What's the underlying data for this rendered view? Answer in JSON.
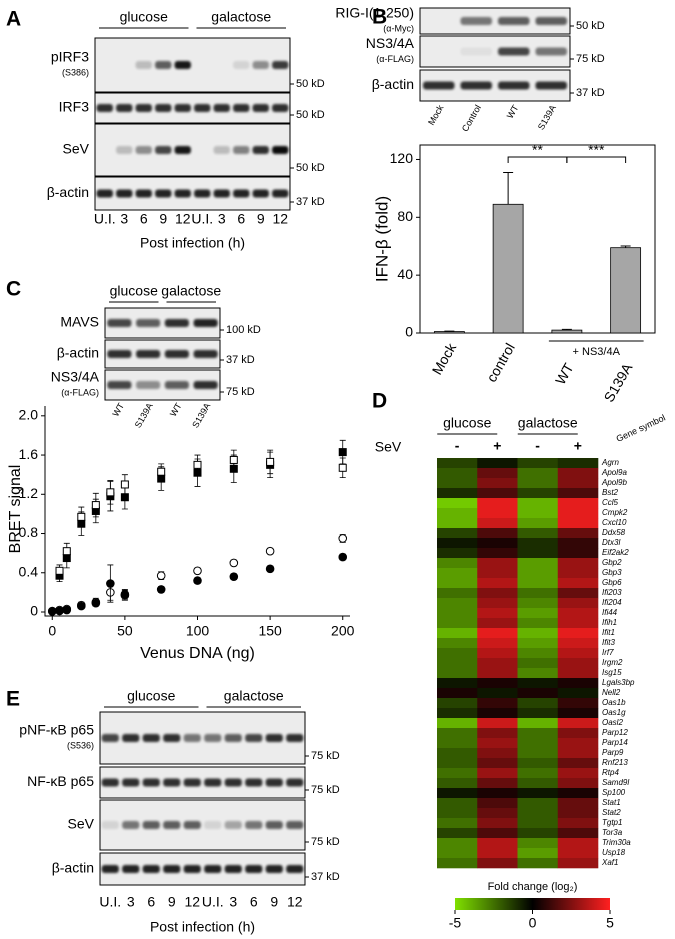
{
  "figure": {
    "A": {
      "letter": "A",
      "groups": [
        "glucose",
        "galactose"
      ],
      "rows": [
        {
          "label": "pIRF3",
          "sub": "(S386)",
          "size": "50 kD"
        },
        {
          "label": "IRF3",
          "size": "50 kD"
        },
        {
          "label": "SeV",
          "size": "50 kD"
        },
        {
          "label": "β-actin",
          "size": "37 kD"
        }
      ],
      "lanes": [
        "U.I.",
        "3",
        "6",
        "9",
        "12",
        "U.I.",
        "3",
        "6",
        "9",
        "12"
      ],
      "xlabel": "Post infection (h)"
    },
    "B": {
      "letter": "B",
      "rows": [
        {
          "label": "RIG-I(1-250)",
          "sub": "(α-Myc)",
          "size": "50 kD"
        },
        {
          "label": "NS3/4A",
          "sub": "(α-FLAG)",
          "size": "75 kD"
        },
        {
          "label": "β-actin",
          "size": "37 kD"
        }
      ],
      "lanes": [
        "Mock",
        "Control",
        "WT",
        "S139A"
      ]
    },
    "C": {
      "letter": "C",
      "groups": [
        "glucose",
        "galactose"
      ],
      "rows": [
        {
          "label": "MAVS",
          "size": "100 kD"
        },
        {
          "label": "β-actin",
          "size": "37 kD"
        },
        {
          "label": "NS3/4A",
          "sub": "(α-FLAG)",
          "size": "75 kD"
        }
      ],
      "lanes": [
        "WT",
        "S139A",
        "WT",
        "S139A"
      ]
    },
    "D": {
      "letter": "D"
    },
    "E": {
      "letter": "E",
      "groups": [
        "glucose",
        "galactose"
      ],
      "rows": [
        {
          "label": "pNF-κB p65",
          "sub": "(S536)",
          "size": "75 kD"
        },
        {
          "label": "NF-κB p65",
          "size": "75 kD"
        },
        {
          "label": "SeV",
          "size": "75 kD"
        },
        {
          "label": "β-actin",
          "size": "37 kD"
        }
      ],
      "lanes": [
        "U.I.",
        "3",
        "6",
        "9",
        "12",
        "U.I.",
        "3",
        "6",
        "9",
        "12"
      ],
      "xlabel": "Post infection (h)"
    }
  },
  "chart_data": [
    {
      "type": "bar",
      "ylabel": "IFN-β (fold)",
      "categories": [
        "Mock",
        "control",
        "WT",
        "S139A"
      ],
      "values": [
        1,
        89,
        2,
        59
      ],
      "errors": [
        0.3,
        22,
        0.5,
        1.2
      ],
      "ylim": [
        0,
        130
      ],
      "yticks": [
        0,
        40,
        80,
        120
      ],
      "color": "#a6a6a6",
      "annotations": [
        "**",
        "***"
      ],
      "group_label": "+ NS3/4A"
    },
    {
      "type": "scatter",
      "xlabel": "Venus DNA (ng)",
      "ylabel": "BRET signal",
      "xlim": [
        -5,
        205
      ],
      "ylim": [
        0,
        2.1
      ],
      "xticks": [
        0,
        50,
        100,
        150,
        200
      ],
      "yticks": [
        0,
        0.4,
        0.8,
        1.2,
        1.6,
        {
          "value": 2.0,
          "label": "2.0"
        }
      ],
      "series": [
        {
          "marker": "square",
          "filled": true,
          "color": "#000000",
          "x": [
            5,
            10,
            20,
            30,
            40,
            50,
            75,
            100,
            125,
            150,
            200
          ],
          "values": [
            0.37,
            0.55,
            0.9,
            1.03,
            1.18,
            1.17,
            1.36,
            1.42,
            1.46,
            1.5,
            1.63
          ],
          "errors": [
            0.06,
            0.1,
            0.12,
            0.12,
            0.15,
            0.12,
            0.12,
            0.14,
            0.14,
            0.13,
            0.12
          ]
        },
        {
          "marker": "square",
          "filled": false,
          "color": "#000000",
          "x": [
            5,
            10,
            20,
            30,
            40,
            50,
            75,
            100,
            125,
            150,
            200
          ],
          "values": [
            0.42,
            0.62,
            0.97,
            1.09,
            1.22,
            1.3,
            1.43,
            1.5,
            1.55,
            1.53,
            1.47
          ],
          "errors": [
            0.06,
            0.08,
            0.1,
            0.12,
            0.12,
            0.1,
            0.08,
            0.1,
            0.1,
            0.12,
            0.1
          ]
        },
        {
          "marker": "circle",
          "filled": false,
          "color": "#000000",
          "x": [
            0,
            5,
            10,
            20,
            30,
            40,
            50,
            75,
            100,
            125,
            150,
            200
          ],
          "values": [
            0.01,
            0.02,
            0.03,
            0.07,
            0.1,
            0.2,
            0.17,
            0.37,
            0.42,
            0.5,
            0.62,
            0.75
          ],
          "errors": [
            0.01,
            0.02,
            0.02,
            0.03,
            0.04,
            0.08,
            0.05,
            0.04,
            0.03,
            0.03,
            0.03,
            0.04
          ]
        },
        {
          "marker": "circle",
          "filled": true,
          "color": "#000000",
          "x": [
            0,
            5,
            10,
            20,
            30,
            40,
            50,
            75,
            100,
            125,
            150,
            200
          ],
          "values": [
            0.005,
            0.01,
            0.02,
            0.06,
            0.09,
            0.29,
            0.18,
            0.23,
            0.32,
            0.36,
            0.44,
            0.56
          ],
          "errors": [
            0.01,
            0.01,
            0.02,
            0.02,
            0.03,
            0.19,
            0.05,
            0.03,
            0.03,
            0.03,
            0.03,
            0.03
          ]
        }
      ]
    },
    {
      "type": "heatmap",
      "row_title": "Gene symbol",
      "column_title": "SeV",
      "groups": [
        "glucose",
        "galactose"
      ],
      "columns": [
        "-",
        "+",
        "-",
        "+"
      ],
      "rows": [
        "Agrn",
        "Apol9a",
        "Apol9b",
        "Bst2",
        "Ccl5",
        "Cmpk2",
        "Cxcl10",
        "Ddx58",
        "Dtx3l",
        "Eif2ak2",
        "Gbp2",
        "Gbp3",
        "Gbp6",
        "Ifi203",
        "Ifi204",
        "Ifi44",
        "Ifih1",
        "Ifit1",
        "Ifit3",
        "Irf7",
        "Irgm2",
        "Isg15",
        "Lgals3bp",
        "Nell2",
        "Oas1b",
        "Oas1g",
        "Oasl2",
        "Parp12",
        "Parp14",
        "Parp9",
        "Rnf213",
        "Rtp4",
        "Samd9l",
        "Sp100",
        "Stat1",
        "Stat2",
        "Tgtp1",
        "Tor3a",
        "Trim30a",
        "Usp18",
        "Xaf1"
      ],
      "values": [
        [
          -1.5,
          -0.5,
          -1.5,
          -1
        ],
        [
          -2,
          2,
          -2.5,
          2.5
        ],
        [
          -2,
          2.5,
          -2.5,
          2.5
        ],
        [
          -1,
          1.5,
          -1.5,
          1.5
        ],
        [
          -4.5,
          4.5,
          -4,
          4.5
        ],
        [
          -4,
          4.5,
          -4,
          4.5
        ],
        [
          -4,
          4,
          -3.5,
          4.5
        ],
        [
          -1.5,
          1.5,
          -2,
          2
        ],
        [
          -0.5,
          0.5,
          -1,
          1
        ],
        [
          -1,
          1,
          -1,
          1
        ],
        [
          -3,
          3,
          -3.5,
          3
        ],
        [
          -3.5,
          3,
          -3.5,
          3
        ],
        [
          -3.5,
          3.5,
          -3.5,
          3.5
        ],
        [
          -2.5,
          2.5,
          -2.5,
          2
        ],
        [
          -3,
          3,
          -3,
          3
        ],
        [
          -3,
          3.5,
          -3.5,
          3.5
        ],
        [
          -3,
          3,
          -3,
          3.5
        ],
        [
          -4,
          4.5,
          -4,
          4.5
        ],
        [
          -3,
          4,
          -3.5,
          4
        ],
        [
          -2.5,
          3.5,
          -3,
          3.5
        ],
        [
          -2.5,
          3,
          -2.5,
          3
        ],
        [
          -2.5,
          3,
          -3,
          3
        ],
        [
          -0.5,
          0.5,
          -0.5,
          0.5
        ],
        [
          0.5,
          -0.5,
          0.5,
          -0.5
        ],
        [
          -1.5,
          1,
          -1.5,
          1
        ],
        [
          -1,
          0.5,
          -1,
          0.5
        ],
        [
          -4,
          4,
          -4,
          4
        ],
        [
          -2.5,
          2.5,
          -2.5,
          2.5
        ],
        [
          -2.5,
          3,
          -2.5,
          3
        ],
        [
          -2,
          2.5,
          -2.5,
          3
        ],
        [
          -2,
          2,
          -2,
          2
        ],
        [
          -2.5,
          3,
          -2.5,
          3
        ],
        [
          -2,
          2,
          -2,
          2.5
        ],
        [
          -0.5,
          0.5,
          -0.5,
          0.5
        ],
        [
          -2,
          1.5,
          -2,
          2
        ],
        [
          -2,
          2,
          -2,
          2
        ],
        [
          -2.5,
          2.5,
          -2,
          2.5
        ],
        [
          -1.5,
          1.5,
          -1.5,
          1.5
        ],
        [
          -3,
          3.5,
          -3,
          3.5
        ],
        [
          -3,
          3.5,
          -3.5,
          3.5
        ],
        [
          -2.5,
          2.5,
          -2.5,
          3
        ]
      ],
      "colorbar_title": "Fold change (log₂)",
      "zlim": [
        -5,
        5
      ],
      "zticks": [
        -5,
        0,
        5
      ],
      "colors": [
        "#80e000",
        "#000000",
        "#ff2020"
      ]
    }
  ]
}
